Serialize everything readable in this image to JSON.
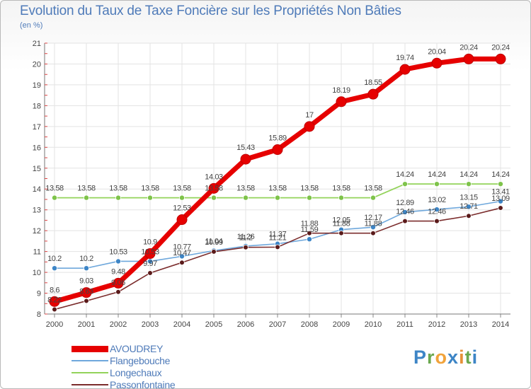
{
  "chart_data": {
    "type": "line",
    "title": "Evolution du Taux de Taxe Foncière sur les Propriétés Non Bâties",
    "ylabel": "(en %)",
    "xlabel": "",
    "ylim": [
      8,
      21
    ],
    "yticks": [
      8,
      9,
      10,
      11,
      12,
      13,
      14,
      15,
      16,
      17,
      18,
      19,
      20,
      21
    ],
    "grid": true,
    "legend_position": "bottom-left",
    "categories": [
      "2000",
      "2001",
      "2002",
      "2003",
      "2004",
      "2005",
      "2006",
      "2007",
      "2008",
      "2009",
      "2010",
      "2011",
      "2012",
      "2013",
      "2014"
    ],
    "series": [
      {
        "name": "AVOUDREY",
        "color": "#ee0000",
        "values": [
          8.6,
          9.03,
          9.48,
          10.9,
          12.53,
          14.03,
          15.43,
          15.89,
          17.0,
          18.19,
          18.55,
          19.74,
          20.04,
          20.24,
          20.24
        ],
        "labels": [
          "8.6",
          "9.03",
          "9.48",
          "10.9",
          "12.53",
          "14.03",
          "15.43",
          "15.89",
          "17",
          "18.19",
          "18.55",
          "19.74",
          "20.04",
          "20.24",
          "20.24"
        ]
      },
      {
        "name": "Flangebouche",
        "color": "#6fa8dc",
        "marker": "#3d85c6",
        "values": [
          10.2,
          10.2,
          10.53,
          10.53,
          10.77,
          11.04,
          11.26,
          11.37,
          11.59,
          12.05,
          12.17,
          12.89,
          13.02,
          13.15,
          13.41
        ],
        "labels": [
          "10.2",
          "10.2",
          "10.53",
          "10.53",
          "10.77",
          "11.04",
          "11.26",
          "11.37",
          "11.59",
          "12.05",
          "12.17",
          "12.89",
          "13.02",
          "13.15",
          "13.41"
        ]
      },
      {
        "name": "Longechaux",
        "color": "#93d35a",
        "marker": "#7ec34a",
        "values": [
          13.58,
          13.58,
          13.58,
          13.58,
          13.58,
          13.58,
          13.58,
          13.58,
          13.58,
          13.58,
          13.58,
          14.24,
          14.24,
          14.24,
          14.24
        ],
        "labels": [
          "13.58",
          "13.58",
          "13.58",
          "13.58",
          "13.58",
          "13.58",
          "13.58",
          "13.58",
          "13.58",
          "13.58",
          "13.58",
          "14.24",
          "14.24",
          "14.24",
          "14.24"
        ]
      },
      {
        "name": "Passonfontaine",
        "color": "#7b2c2c",
        "marker": "#5a1a1a",
        "values": [
          8.22,
          8.63,
          9.06,
          9.97,
          10.47,
          10.99,
          11.2,
          11.21,
          11.88,
          11.88,
          11.88,
          12.46,
          12.46,
          12.71,
          13.09
        ],
        "labels": [
          "8.22",
          "8.63",
          "9.06",
          "9.97",
          "10.47",
          "10.99",
          "11.2",
          "11.21",
          "11.88",
          "11.88",
          "11.88",
          "12.46",
          "12.46",
          "12.71",
          "13.09"
        ]
      }
    ]
  },
  "logo": {
    "letters": [
      "P",
      "r",
      "o",
      "x",
      "i",
      "t",
      "i"
    ],
    "colors": [
      "#3d85c6",
      "#6aa84f",
      "#f1a33b",
      "#3d85c6",
      "#e69138",
      "#6aa84f",
      "#3d85c6"
    ]
  }
}
